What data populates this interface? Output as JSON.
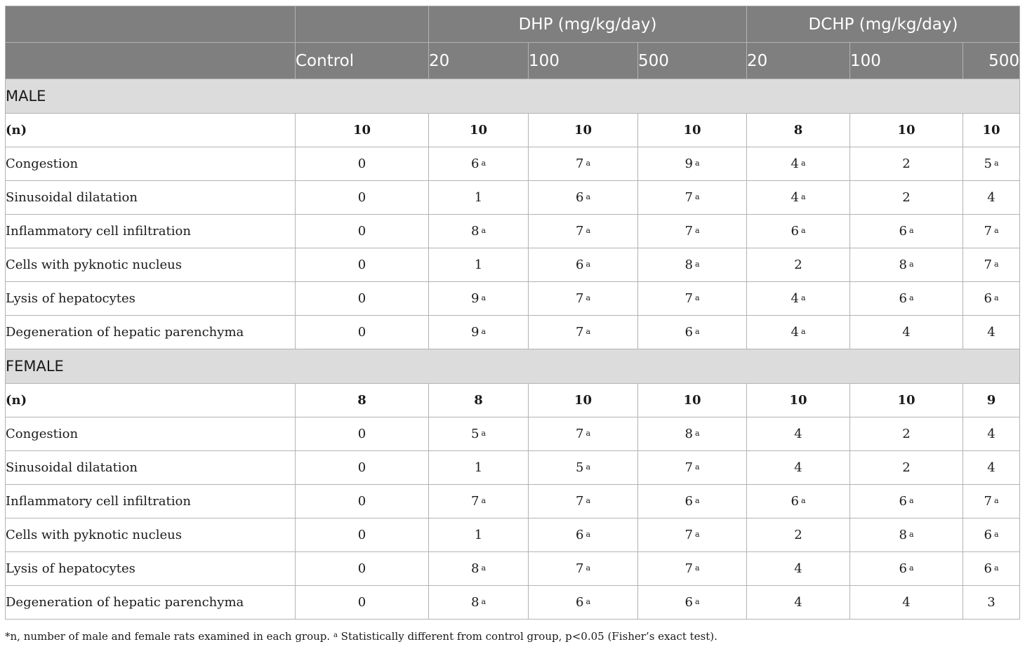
{
  "header": {
    "groups": [
      "DHP (mg/kg/day)",
      "DCHP (mg/kg/day)"
    ],
    "columns": [
      "Control",
      "20",
      "100",
      "500",
      "20",
      "100",
      "500"
    ]
  },
  "sections": [
    {
      "title": "MALE",
      "rows": [
        {
          "label": "(n)",
          "bold": true,
          "cells": [
            {
              "v": "10",
              "s": ""
            },
            {
              "v": "10",
              "s": ""
            },
            {
              "v": "10",
              "s": ""
            },
            {
              "v": "10",
              "s": ""
            },
            {
              "v": "8",
              "s": ""
            },
            {
              "v": "10",
              "s": ""
            },
            {
              "v": "10",
              "s": ""
            }
          ]
        },
        {
          "label": "Congestion",
          "cells": [
            {
              "v": "0",
              "s": ""
            },
            {
              "v": "6",
              "s": "a"
            },
            {
              "v": "7",
              "s": "a"
            },
            {
              "v": "9",
              "s": "a"
            },
            {
              "v": "4",
              "s": "a"
            },
            {
              "v": "2",
              "s": ""
            },
            {
              "v": "5",
              "s": "a"
            }
          ]
        },
        {
          "label": "Sinusoidal dilatation",
          "cells": [
            {
              "v": "0",
              "s": ""
            },
            {
              "v": "1",
              "s": ""
            },
            {
              "v": "6",
              "s": "a"
            },
            {
              "v": "7",
              "s": "a"
            },
            {
              "v": "4",
              "s": "a"
            },
            {
              "v": "2",
              "s": ""
            },
            {
              "v": "4",
              "s": ""
            }
          ]
        },
        {
          "label": "Inflammatory cell infiltration",
          "cells": [
            {
              "v": "0",
              "s": ""
            },
            {
              "v": "8",
              "s": "a"
            },
            {
              "v": "7",
              "s": "a"
            },
            {
              "v": "7",
              "s": "a"
            },
            {
              "v": "6",
              "s": "a"
            },
            {
              "v": "6",
              "s": "a"
            },
            {
              "v": "7",
              "s": "a"
            }
          ]
        },
        {
          "label": "Cells with pyknotic nucleus",
          "cells": [
            {
              "v": "0",
              "s": ""
            },
            {
              "v": "1",
              "s": ""
            },
            {
              "v": "6",
              "s": "a"
            },
            {
              "v": "8",
              "s": "a"
            },
            {
              "v": "2",
              "s": ""
            },
            {
              "v": "8",
              "s": "a"
            },
            {
              "v": "7",
              "s": "a"
            }
          ]
        },
        {
          "label": "Lysis of hepatocytes",
          "cells": [
            {
              "v": "0",
              "s": ""
            },
            {
              "v": "9",
              "s": "a"
            },
            {
              "v": "7",
              "s": "a"
            },
            {
              "v": "7",
              "s": "a"
            },
            {
              "v": "4",
              "s": "a"
            },
            {
              "v": "6",
              "s": "a"
            },
            {
              "v": "6",
              "s": "a"
            }
          ]
        },
        {
          "label": "Degeneration of hepatic parenchyma",
          "cells": [
            {
              "v": "0",
              "s": ""
            },
            {
              "v": "9",
              "s": "a"
            },
            {
              "v": "7",
              "s": "a"
            },
            {
              "v": "6",
              "s": "a"
            },
            {
              "v": "4",
              "s": "a"
            },
            {
              "v": "4",
              "s": ""
            },
            {
              "v": "4",
              "s": ""
            }
          ]
        }
      ]
    },
    {
      "title": "FEMALE",
      "rows": [
        {
          "label": "(n)",
          "bold": true,
          "cells": [
            {
              "v": "8",
              "s": ""
            },
            {
              "v": "8",
              "s": ""
            },
            {
              "v": "10",
              "s": ""
            },
            {
              "v": "10",
              "s": ""
            },
            {
              "v": "10",
              "s": ""
            },
            {
              "v": "10",
              "s": ""
            },
            {
              "v": "9",
              "s": ""
            }
          ]
        },
        {
          "label": "Congestion",
          "cells": [
            {
              "v": "0",
              "s": ""
            },
            {
              "v": "5",
              "s": "a"
            },
            {
              "v": "7",
              "s": "a"
            },
            {
              "v": "8",
              "s": "a"
            },
            {
              "v": "4",
              "s": ""
            },
            {
              "v": "2",
              "s": ""
            },
            {
              "v": "4",
              "s": ""
            }
          ]
        },
        {
          "label": "Sinusoidal dilatation",
          "cells": [
            {
              "v": "0",
              "s": ""
            },
            {
              "v": "1",
              "s": ""
            },
            {
              "v": "5",
              "s": "a"
            },
            {
              "v": "7",
              "s": "a"
            },
            {
              "v": "4",
              "s": ""
            },
            {
              "v": "2",
              "s": ""
            },
            {
              "v": "4",
              "s": ""
            }
          ]
        },
        {
          "label": "Inflammatory cell infiltration",
          "cells": [
            {
              "v": "0",
              "s": ""
            },
            {
              "v": "7",
              "s": "a"
            },
            {
              "v": "7",
              "s": "a"
            },
            {
              "v": "6",
              "s": "a"
            },
            {
              "v": "6",
              "s": "a"
            },
            {
              "v": "6",
              "s": "a"
            },
            {
              "v": "7",
              "s": "a"
            }
          ]
        },
        {
          "label": "Cells with pyknotic nucleus",
          "cells": [
            {
              "v": "0",
              "s": ""
            },
            {
              "v": "1",
              "s": ""
            },
            {
              "v": "6",
              "s": "a"
            },
            {
              "v": "7",
              "s": "a"
            },
            {
              "v": "2",
              "s": ""
            },
            {
              "v": "8",
              "s": "a"
            },
            {
              "v": "6",
              "s": "a"
            }
          ]
        },
        {
          "label": "Lysis of hepatocytes",
          "cells": [
            {
              "v": "0",
              "s": ""
            },
            {
              "v": "8",
              "s": "a"
            },
            {
              "v": "7",
              "s": "a"
            },
            {
              "v": "7",
              "s": "a"
            },
            {
              "v": "4",
              "s": ""
            },
            {
              "v": "6",
              "s": "a"
            },
            {
              "v": "6",
              "s": "a"
            }
          ]
        },
        {
          "label": "Degeneration of hepatic parenchyma",
          "cells": [
            {
              "v": "0",
              "s": ""
            },
            {
              "v": "8",
              "s": "a"
            },
            {
              "v": "6",
              "s": "a"
            },
            {
              "v": "6",
              "s": "a"
            },
            {
              "v": "4",
              "s": ""
            },
            {
              "v": "4",
              "s": ""
            },
            {
              "v": "3",
              "s": ""
            }
          ]
        }
      ]
    }
  ],
  "footnote": {
    "part1": "*n, number of male and female rats examined in each group. ",
    "sup": "a",
    "part2": " Statistically different from control group, p<0.05 (Fisher’s exact test)."
  },
  "colors": {
    "header_bg": "#7f7f7f",
    "section_bg": "#dcdcdc",
    "border": "#b3b3b3"
  }
}
